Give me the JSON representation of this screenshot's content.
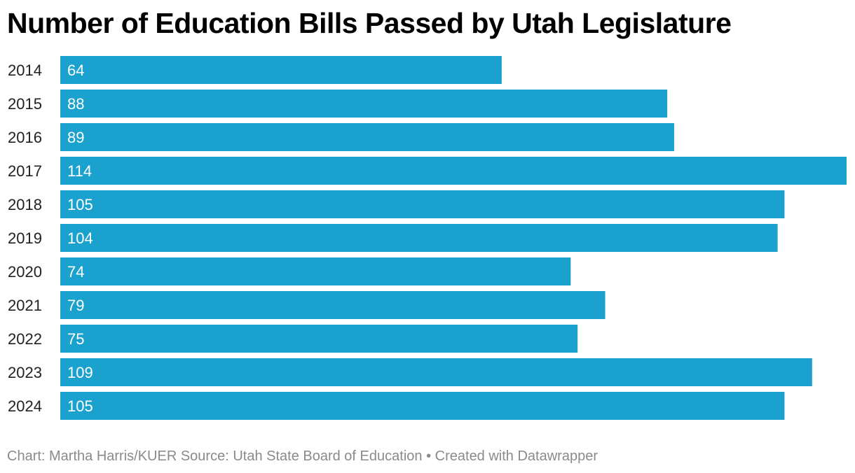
{
  "chart_data": {
    "type": "bar",
    "orientation": "horizontal",
    "title": "Number of Education Bills Passed by Utah Legislature",
    "categories": [
      "2014",
      "2015",
      "2016",
      "2017",
      "2018",
      "2019",
      "2020",
      "2021",
      "2022",
      "2023",
      "2024"
    ],
    "values": [
      64,
      88,
      89,
      114,
      105,
      104,
      74,
      79,
      75,
      109,
      105
    ],
    "xlim": [
      0,
      114
    ],
    "xlabel": "",
    "ylabel": "",
    "grid": false,
    "bar_color": "#1aa1ce",
    "label_color": "#ffffff"
  },
  "footer": {
    "credit": "Chart: Martha Harris/KUER",
    "source": "Source: Utah State Board of Education",
    "separator": "•",
    "created_with": "Created with Datawrapper"
  }
}
